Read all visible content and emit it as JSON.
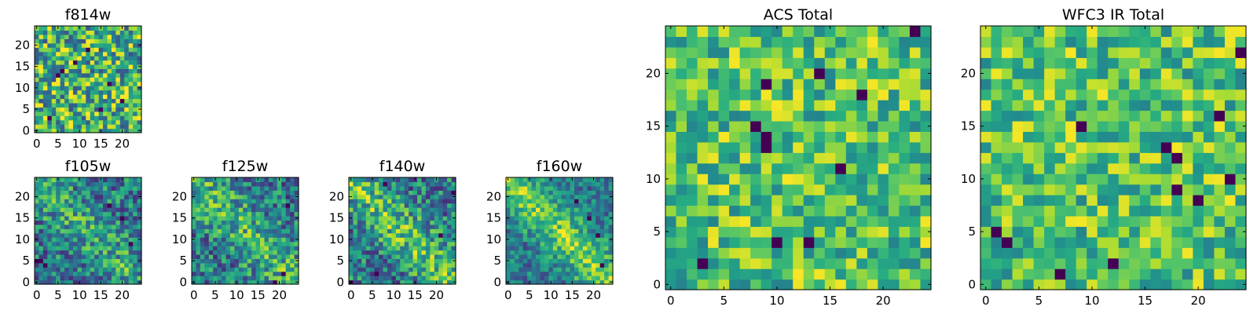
{
  "chart_data": [
    {
      "type": "heatmap",
      "id": "f814w",
      "title": "f814w",
      "grid_size": [
        25,
        25
      ],
      "xlim": [
        -0.5,
        24.5
      ],
      "ylim": [
        -0.5,
        24.5
      ],
      "xticks": [
        0,
        5,
        10,
        15,
        20
      ],
      "yticks": [
        0,
        5,
        10,
        15,
        20
      ],
      "colormap": "viridis",
      "pattern": "noise",
      "seed": 11,
      "bright": 0.5,
      "noise": 0.4,
      "dark_pixels": [
        [
          5,
          13
        ],
        [
          6,
          14
        ],
        [
          17,
          11
        ],
        [
          12,
          19
        ],
        [
          3,
          3
        ],
        [
          20,
          7
        ],
        [
          15,
          5
        ],
        [
          9,
          16
        ]
      ]
    },
    {
      "type": "heatmap",
      "id": "f105w",
      "title": "f105w",
      "grid_size": [
        25,
        25
      ],
      "xlim": [
        -0.5,
        24.5
      ],
      "ylim": [
        -0.5,
        24.5
      ],
      "xticks": [
        0,
        5,
        10,
        15,
        20
      ],
      "yticks": [
        0,
        5,
        10,
        15,
        20
      ],
      "colormap": "viridis",
      "pattern": "diagonal",
      "seed": 22,
      "bright": 0.35,
      "noise": 0.3,
      "dark_pixels": [
        [
          0,
          5
        ],
        [
          1,
          5
        ],
        [
          2,
          4
        ],
        [
          17,
          18
        ],
        [
          20,
          15
        ],
        [
          22,
          9
        ]
      ]
    },
    {
      "type": "heatmap",
      "id": "f125w",
      "title": "f125w",
      "grid_size": [
        25,
        25
      ],
      "xlim": [
        -0.5,
        24.5
      ],
      "ylim": [
        -0.5,
        24.5
      ],
      "xticks": [
        0,
        5,
        10,
        15,
        20
      ],
      "yticks": [
        0,
        5,
        10,
        15,
        20
      ],
      "colormap": "viridis",
      "pattern": "diagonal",
      "seed": 33,
      "bright": 0.45,
      "noise": 0.3,
      "dark_pixels": [
        [
          19,
          0
        ],
        [
          21,
          2
        ],
        [
          22,
          18
        ]
      ]
    },
    {
      "type": "heatmap",
      "id": "f140w",
      "title": "f140w",
      "grid_size": [
        25,
        25
      ],
      "xlim": [
        -0.5,
        24.5
      ],
      "ylim": [
        -0.5,
        24.5
      ],
      "xticks": [
        0,
        5,
        10,
        15,
        20
      ],
      "yticks": [
        0,
        5,
        10,
        15,
        20
      ],
      "colormap": "viridis",
      "pattern": "diagonal",
      "seed": 44,
      "bright": 0.6,
      "noise": 0.3,
      "dark_pixels": [
        [
          0,
          0
        ],
        [
          8,
          23
        ],
        [
          21,
          11
        ],
        [
          24,
          21
        ],
        [
          6,
          2
        ]
      ]
    },
    {
      "type": "heatmap",
      "id": "f160w",
      "title": "f160w",
      "grid_size": [
        25,
        25
      ],
      "xlim": [
        -0.5,
        24.5
      ],
      "ylim": [
        -0.5,
        24.5
      ],
      "xticks": [
        0,
        5,
        10,
        15,
        20
      ],
      "yticks": [
        0,
        5,
        10,
        15,
        20
      ],
      "colormap": "viridis",
      "pattern": "diagonal",
      "seed": 55,
      "bright": 0.75,
      "noise": 0.22,
      "dark_pixels": [
        [
          16,
          19
        ],
        [
          19,
          15
        ],
        [
          21,
          11
        ],
        [
          22,
          4
        ]
      ]
    },
    {
      "type": "heatmap",
      "id": "acs-total",
      "title": "ACS Total",
      "grid_size": [
        25,
        25
      ],
      "xlim": [
        -0.5,
        24.5
      ],
      "ylim": [
        -0.5,
        24.5
      ],
      "xticks": [
        0,
        5,
        10,
        15,
        20
      ],
      "yticks": [
        0,
        5,
        10,
        15,
        20
      ],
      "colormap": "viridis",
      "pattern": "flat",
      "seed": 66,
      "bright": 0.3,
      "noise": 0.34,
      "dark_pixels": [
        [
          23,
          24
        ],
        [
          14,
          20
        ],
        [
          9,
          19
        ],
        [
          8,
          15
        ],
        [
          9,
          14
        ],
        [
          9,
          13
        ],
        [
          16,
          11
        ],
        [
          3,
          2
        ],
        [
          10,
          4
        ],
        [
          13,
          4
        ],
        [
          18,
          18
        ]
      ]
    },
    {
      "type": "heatmap",
      "id": "wfc3-ir-total",
      "title": "WFC3 IR Total",
      "grid_size": [
        25,
        25
      ],
      "xlim": [
        -0.5,
        24.5
      ],
      "ylim": [
        -0.5,
        24.5
      ],
      "xticks": [
        0,
        5,
        10,
        15,
        20
      ],
      "yticks": [
        0,
        5,
        10,
        15,
        20
      ],
      "colormap": "viridis",
      "pattern": "flat",
      "seed": 77,
      "bright": 0.3,
      "noise": 0.34,
      "dark_pixels": [
        [
          24,
          22
        ],
        [
          9,
          15
        ],
        [
          18,
          12
        ],
        [
          18,
          9
        ],
        [
          20,
          8
        ],
        [
          1,
          5
        ],
        [
          2,
          4
        ],
        [
          12,
          2
        ],
        [
          7,
          1
        ],
        [
          17,
          13
        ],
        [
          23,
          10
        ],
        [
          22,
          16
        ]
      ]
    }
  ]
}
